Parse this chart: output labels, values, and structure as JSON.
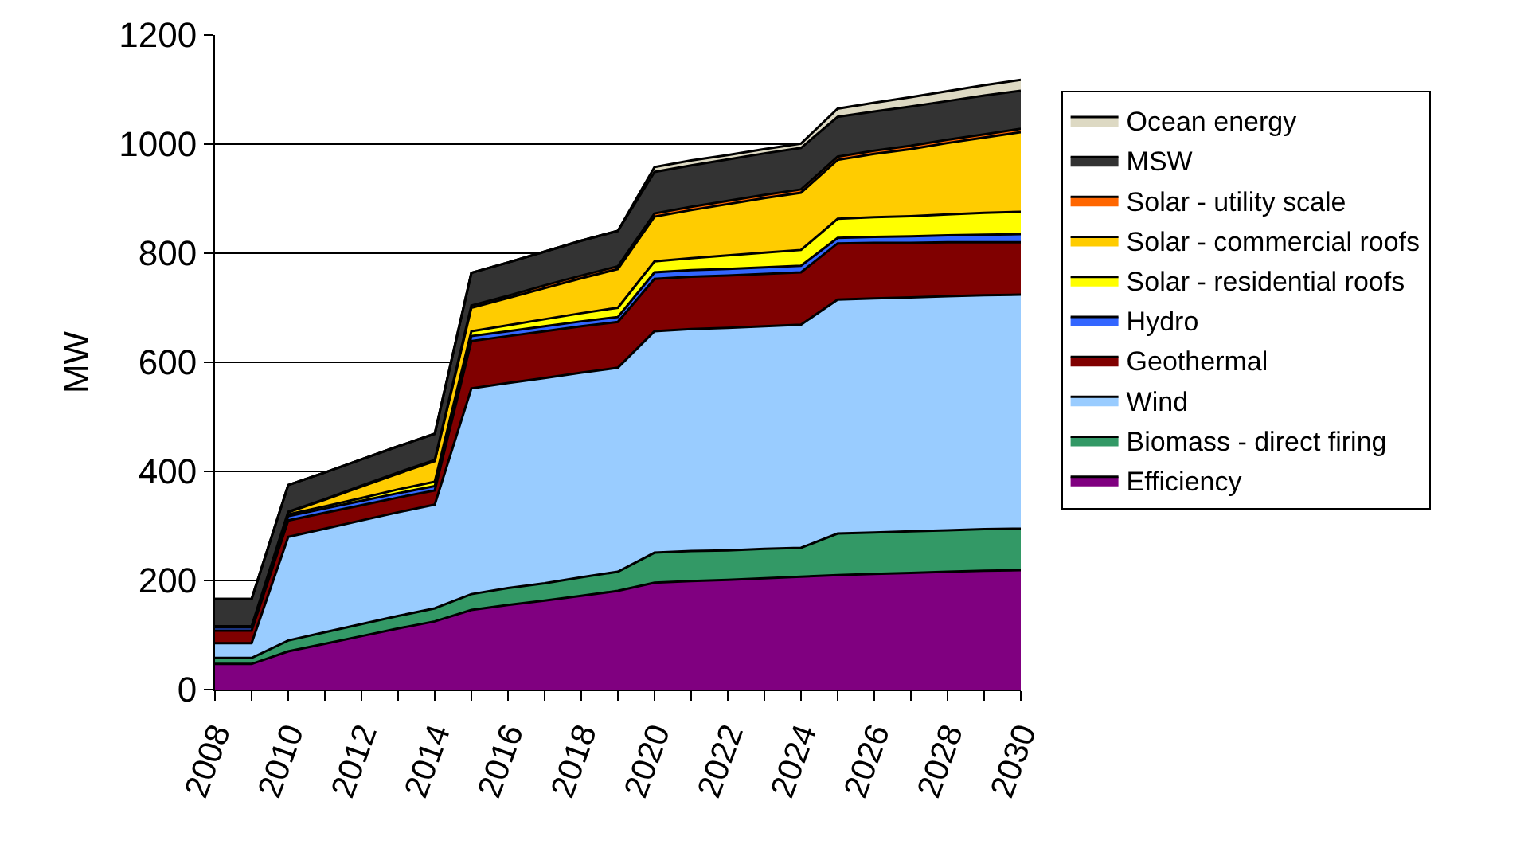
{
  "chart_data": {
    "type": "area",
    "stacked": true,
    "ylabel": "MW",
    "x": [
      2008,
      2009,
      2010,
      2011,
      2012,
      2013,
      2014,
      2015,
      2016,
      2017,
      2018,
      2019,
      2020,
      2021,
      2022,
      2023,
      2024,
      2025,
      2026,
      2027,
      2028,
      2029,
      2030
    ],
    "xlim": [
      2008,
      2030
    ],
    "xticks": [
      2008,
      {
        "value": 2009,
        "label": null
      },
      2010,
      {
        "value": 2011,
        "label": null
      },
      2012,
      {
        "value": 2013,
        "label": null
      },
      2014,
      {
        "value": 2015,
        "label": null
      },
      2016,
      {
        "value": 2017,
        "label": null
      },
      2018,
      {
        "value": 2019,
        "label": null
      },
      2020,
      {
        "value": 2021,
        "label": null
      },
      2022,
      {
        "value": 2023,
        "label": null
      },
      2024,
      {
        "value": 2025,
        "label": null
      },
      2026,
      {
        "value": 2027,
        "label": null
      },
      2028,
      {
        "value": 2029,
        "label": null
      },
      2030
    ],
    "ylim": [
      0,
      1200
    ],
    "yticks": [
      0,
      200,
      400,
      600,
      800,
      1000,
      1200
    ],
    "grid": "y",
    "legend": "right",
    "series": [
      {
        "name": "Efficiency",
        "color": "#800080",
        "values": [
          47,
          47,
          70,
          84,
          98,
          112,
          125,
          146,
          155,
          163,
          172,
          181,
          196,
          199,
          201,
          204,
          207,
          210,
          212,
          214,
          216,
          218,
          219
        ]
      },
      {
        "name": "Biomass - direct firing",
        "color": "#339966",
        "values": [
          11,
          11,
          20,
          21,
          22,
          23,
          24,
          29,
          31,
          32,
          34,
          35,
          55,
          55,
          54,
          54,
          53,
          76,
          76,
          76,
          76,
          76,
          76
        ]
      },
      {
        "name": "Wind",
        "color": "#99ccff",
        "values": [
          27,
          27,
          190,
          190,
          190,
          190,
          190,
          377,
          376,
          376,
          375,
          374,
          406,
          407,
          408,
          408,
          409,
          429,
          429,
          429,
          429,
          429,
          429
        ]
      },
      {
        "name": "Geothermal",
        "color": "#800000",
        "values": [
          23,
          23,
          30,
          29,
          28,
          27,
          26,
          87,
          86,
          86,
          85,
          84,
          96,
          96,
          96,
          96,
          96,
          103,
          102,
          100,
          99,
          97,
          96
        ]
      },
      {
        "name": "Hydro",
        "color": "#3366ff",
        "values": [
          6,
          6,
          8,
          8,
          8,
          8,
          8,
          9,
          9,
          9,
          9,
          9,
          12,
          12,
          12,
          12,
          12,
          10,
          11,
          12,
          13,
          14,
          15
        ]
      },
      {
        "name": "Solar - residential roofs",
        "color": "#ffff00",
        "values": [
          1,
          1,
          3,
          4,
          5,
          7,
          8,
          9,
          11,
          13,
          15,
          17,
          20,
          22,
          25,
          27,
          29,
          35,
          36,
          37,
          38,
          40,
          41
        ]
      },
      {
        "name": "Solar - commercial roofs",
        "color": "#ffcc00",
        "values": [
          1,
          1,
          4,
          12,
          21,
          29,
          38,
          43,
          50,
          57,
          64,
          71,
          82,
          88,
          94,
          100,
          105,
          108,
          116,
          123,
          131,
          138,
          146
        ]
      },
      {
        "name": "Solar - utility scale",
        "color": "#ff6600",
        "values": [
          0,
          0,
          1,
          1,
          2,
          2,
          2,
          4,
          4,
          5,
          5,
          5,
          6,
          6,
          6,
          6,
          6,
          6,
          6,
          6,
          6,
          6,
          6
        ]
      },
      {
        "name": "MSW",
        "color": "#333333",
        "values": [
          50,
          50,
          49,
          49,
          48,
          48,
          48,
          60,
          61,
          62,
          64,
          65,
          76,
          76,
          76,
          76,
          76,
          73,
          72,
          72,
          71,
          71,
          70
        ]
      },
      {
        "name": "Ocean energy",
        "color": "#ddd9c3",
        "values": [
          0,
          0,
          0,
          0,
          0,
          0,
          0,
          0,
          0,
          0,
          0,
          0,
          9,
          9,
          8,
          8,
          8,
          15,
          16,
          17,
          18,
          19,
          20
        ]
      }
    ]
  }
}
